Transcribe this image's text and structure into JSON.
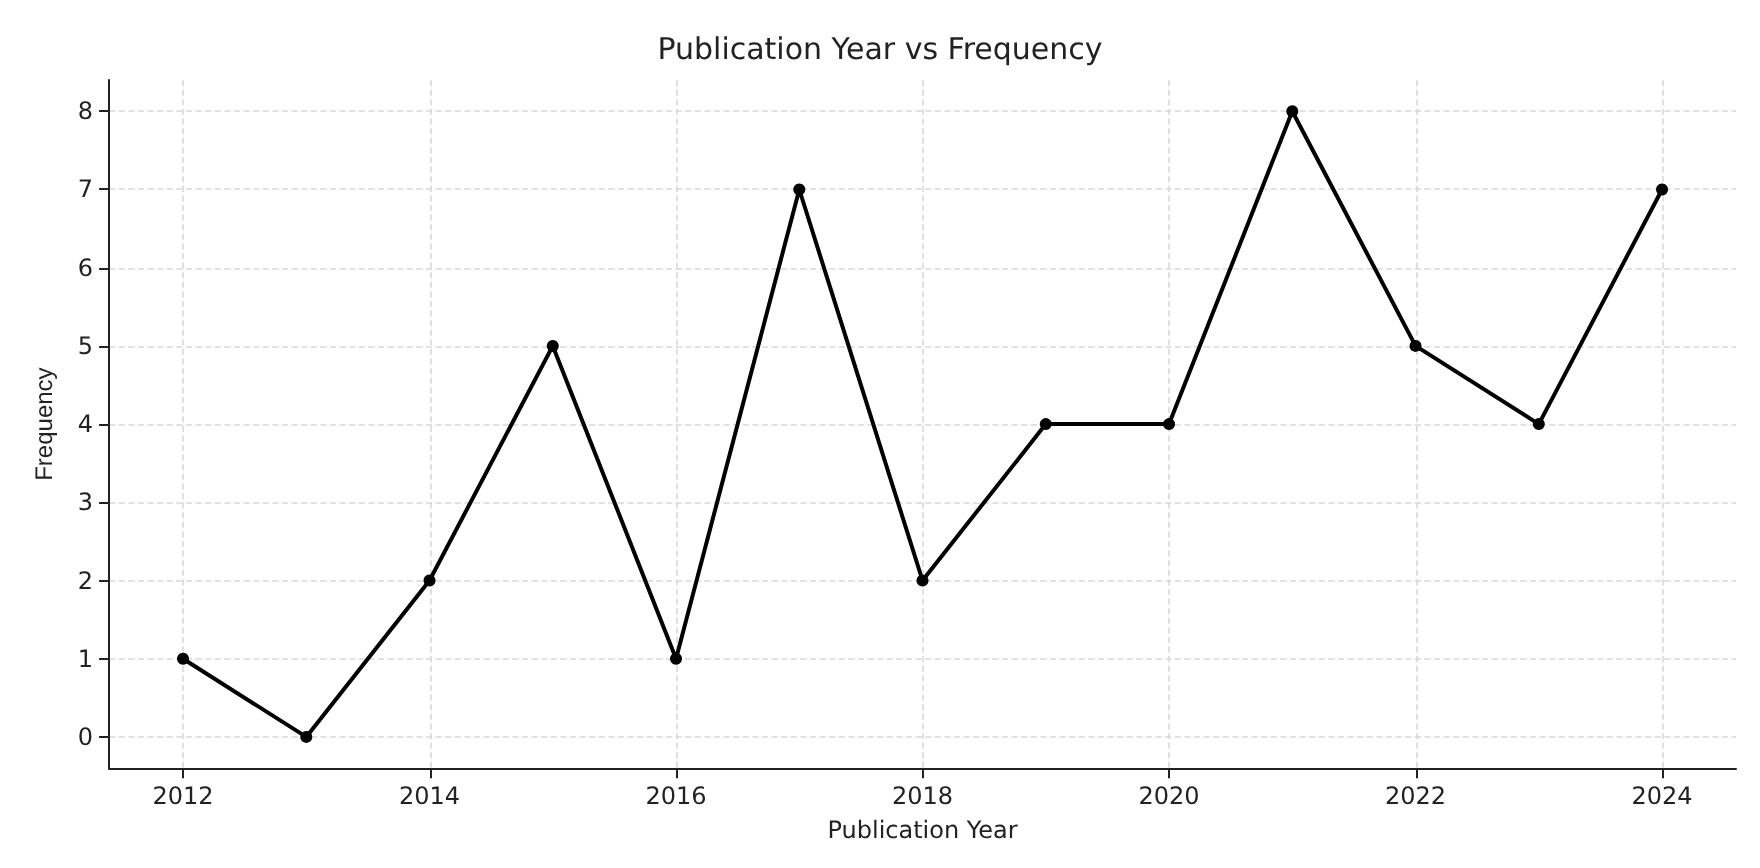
{
  "chart_data": {
    "type": "line",
    "title": "Publication Year vs Frequency",
    "xlabel": "Publication Year",
    "ylabel": "Frequency",
    "x": [
      2012,
      2013,
      2014,
      2015,
      2016,
      2017,
      2018,
      2019,
      2020,
      2021,
      2022,
      2023,
      2024
    ],
    "series": [
      {
        "color": "#000000",
        "values": [
          1,
          0,
          2,
          5,
          1,
          7,
          2,
          4,
          4,
          8,
          5,
          4,
          7
        ]
      }
    ],
    "xlim": [
      2011.4,
      2024.6
    ],
    "xticks": [
      2012,
      2014,
      2016,
      2018,
      2020,
      2022,
      2024
    ],
    "ylim": [
      -0.4,
      8.4
    ],
    "yticks": [
      0,
      1,
      2,
      3,
      4,
      5,
      6,
      7,
      8
    ],
    "grid": true,
    "marker": "circle",
    "line_style": "solid"
  }
}
